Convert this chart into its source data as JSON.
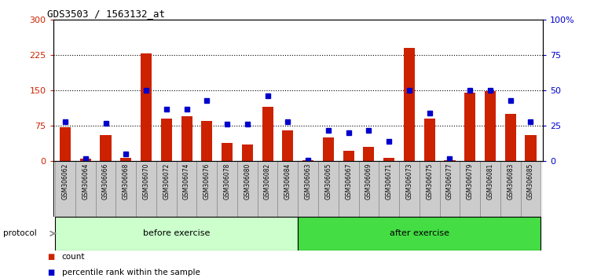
{
  "title": "GDS3503 / 1563132_at",
  "samples": [
    "GSM306062",
    "GSM306064",
    "GSM306066",
    "GSM306068",
    "GSM306070",
    "GSM306072",
    "GSM306074",
    "GSM306076",
    "GSM306078",
    "GSM306080",
    "GSM306082",
    "GSM306084",
    "GSM306063",
    "GSM306065",
    "GSM306067",
    "GSM306069",
    "GSM306071",
    "GSM306073",
    "GSM306075",
    "GSM306077",
    "GSM306079",
    "GSM306081",
    "GSM306083",
    "GSM306085"
  ],
  "counts": [
    72,
    5,
    55,
    8,
    228,
    90,
    95,
    85,
    38,
    35,
    115,
    65,
    3,
    50,
    22,
    30,
    8,
    240,
    90,
    3,
    145,
    148,
    100,
    55
  ],
  "percentiles": [
    28,
    2,
    27,
    5,
    50,
    37,
    37,
    43,
    26,
    26,
    46,
    28,
    1,
    22,
    20,
    22,
    14,
    50,
    34,
    2,
    50,
    50,
    43,
    28
  ],
  "before_count": 12,
  "after_count": 12,
  "left_ylim": [
    0,
    300
  ],
  "right_ylim": [
    0,
    100
  ],
  "left_yticks": [
    0,
    75,
    150,
    225,
    300
  ],
  "right_yticks": [
    0,
    25,
    50,
    75,
    100
  ],
  "right_yticklabels": [
    "0",
    "25",
    "50",
    "75",
    "100%"
  ],
  "bar_color": "#cc2200",
  "dot_color": "#0000cc",
  "before_color": "#ccffcc",
  "after_color": "#44dd44",
  "protocol_label": "protocol",
  "before_label": "before exercise",
  "after_label": "after exercise",
  "legend_count_label": "count",
  "legend_pct_label": "percentile rank within the sample",
  "left_tick_color": "#cc2200",
  "right_tick_color": "#0000cc",
  "label_bg": "#cccccc",
  "fig_width": 7.51,
  "fig_height": 3.54,
  "dpi": 100
}
